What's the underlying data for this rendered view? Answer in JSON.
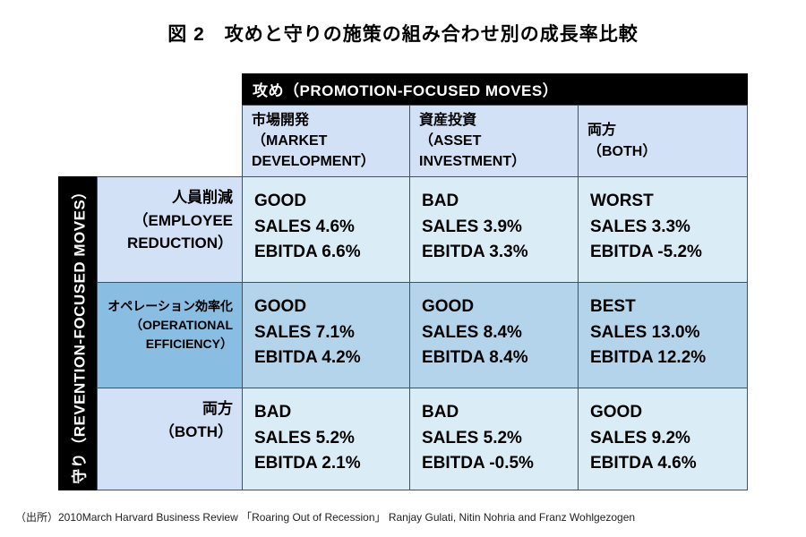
{
  "figure": {
    "title": "図 2　攻めと守りの施策の組み合わせ別の成長率比較",
    "source": "（出所）2010March Harvard Business Review 「Roaring Out of Recession」 Ranjay Gulati, Nitin Nohria and Franz Wohlgezogen"
  },
  "table": {
    "col_group_header": "攻め（PROMOTION-FOCUSED MOVES）",
    "row_group_header": "守り（REVENTION-FOCUSED MOVES）",
    "col_headers": [
      "市場開発\n（MARKET\nDEVELOPMENT）",
      "資産投資\n（ASSET\nINVESTMENT）",
      "両方\n（BOTH）"
    ],
    "row_headers": [
      "人員削減\n（EMPLOYEE\nREDUCTION）",
      "オペレーション効率化\n（OPERATIONAL\nEFFICIENCY）",
      "両方\n（BOTH）"
    ],
    "cells": [
      [
        {
          "rating": "GOOD",
          "sales": "SALES 4.6%",
          "ebitda": "EBITDA 6.6%"
        },
        {
          "rating": "BAD",
          "sales": "SALES 3.9%",
          "ebitda": "EBITDA 3.3%"
        },
        {
          "rating": "WORST",
          "sales": "SALES 3.3%",
          "ebitda": "EBITDA -5.2%"
        }
      ],
      [
        {
          "rating": "GOOD",
          "sales": "SALES 7.1%",
          "ebitda": "EBITDA 4.2%"
        },
        {
          "rating": "GOOD",
          "sales": "SALES 8.4%",
          "ebitda": "EBITDA 8.4%"
        },
        {
          "rating": "BEST",
          "sales": "SALES 13.0%",
          "ebitda": "EBITDA 12.2%"
        }
      ],
      [
        {
          "rating": "BAD",
          "sales": "SALES 5.2%",
          "ebitda": "EBITDA 2.1%"
        },
        {
          "rating": "BAD",
          "sales": "SALES 5.2%",
          "ebitda": "EBITDA -0.5%"
        },
        {
          "rating": "GOOD",
          "sales": "SALES 9.2%",
          "ebitda": "EBITDA 4.6%"
        }
      ]
    ]
  },
  "colors": {
    "header_black": "#000000",
    "header_text": "#ffffff",
    "col_row_header_bg": "#d3e1f6",
    "row_header_mid_bg": "#8abde2",
    "cell_light_bg": "#daedf7",
    "cell_mid_bg": "#b3d4ea",
    "grid_border": "#3d5266"
  },
  "chart_data": {
    "type": "table",
    "title": "図 2　攻めと守りの施策の組み合わせ別の成長率比較",
    "column_dimension": "攻め（PROMOTION-FOCUSED MOVES）",
    "row_dimension": "守り（REVENTION-FOCUSED MOVES）",
    "columns": [
      "市場開発（MARKET DEVELOPMENT）",
      "資産投資（ASSET INVESTMENT）",
      "両方（BOTH）"
    ],
    "rows": [
      "人員削減（EMPLOYEE REDUCTION）",
      "オペレーション効率化（OPERATIONAL EFFICIENCY）",
      "両方（BOTH）"
    ],
    "ratings": [
      [
        "GOOD",
        "BAD",
        "WORST"
      ],
      [
        "GOOD",
        "GOOD",
        "BEST"
      ],
      [
        "BAD",
        "BAD",
        "GOOD"
      ]
    ],
    "sales_growth_pct": [
      [
        4.6,
        3.9,
        3.3
      ],
      [
        7.1,
        8.4,
        13.0
      ],
      [
        5.2,
        5.2,
        9.2
      ]
    ],
    "ebitda_growth_pct": [
      [
        6.6,
        3.3,
        -5.2
      ],
      [
        4.2,
        8.4,
        12.2
      ],
      [
        2.1,
        -0.5,
        4.6
      ]
    ],
    "source": "（出所）2010March Harvard Business Review 「Roaring Out of Recession」 Ranjay Gulati, Nitin Nohria and Franz Wohlgezogen"
  }
}
